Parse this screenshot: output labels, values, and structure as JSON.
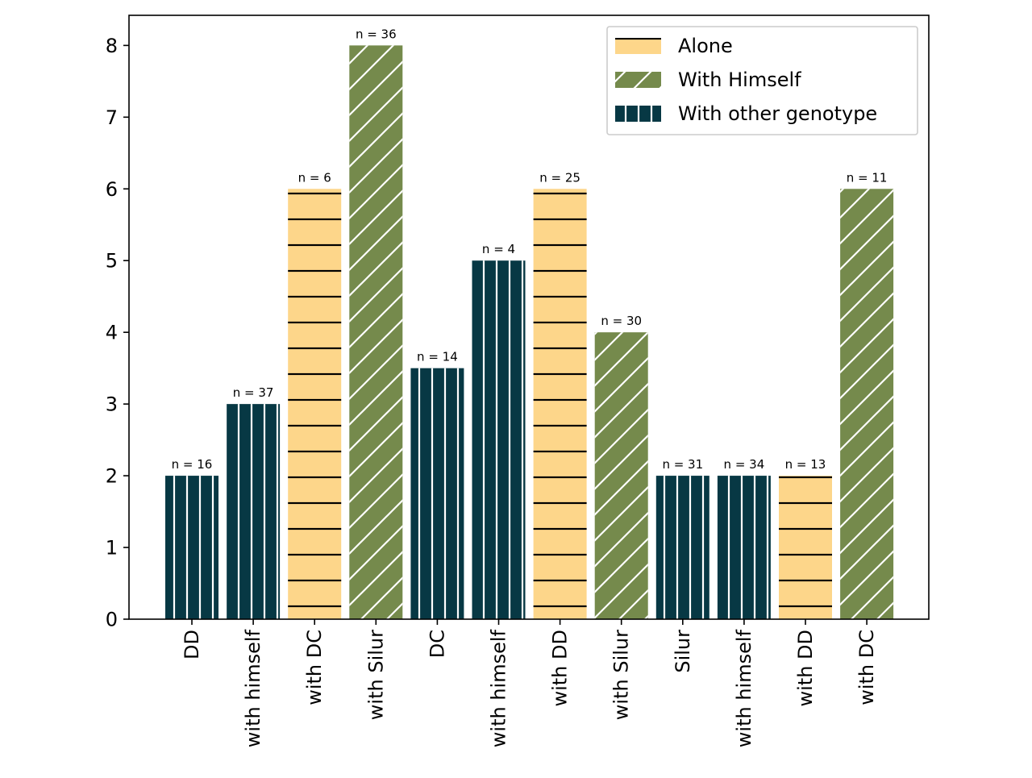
{
  "chart_data": {
    "type": "bar",
    "categories": [
      "DD",
      "with himself",
      "with DC",
      "with Silur",
      "DC",
      "with himself",
      "with DD",
      "with Silur",
      "Silur",
      "with himself",
      "with DD",
      "with DC"
    ],
    "values": [
      2,
      3,
      6,
      8,
      3.5,
      5,
      6,
      4,
      2,
      2,
      2,
      6
    ],
    "groups": [
      "With other genotype",
      "With other genotype",
      "Alone",
      "With Himself",
      "With other genotype",
      "With other genotype",
      "Alone",
      "With Himself",
      "With other genotype",
      "With other genotype",
      "Alone",
      "With Himself"
    ],
    "annotations": [
      "n = 16",
      "n = 37",
      "n = 6",
      "n = 36",
      "n = 14",
      "n = 4",
      "n = 25",
      "n = 30",
      "n = 31",
      "n = 34",
      "n = 13",
      "n = 11"
    ],
    "yticks": [
      "0",
      "1",
      "2",
      "3",
      "4",
      "5",
      "6",
      "7",
      "8"
    ],
    "ylim": [
      0,
      8.42
    ],
    "legend": {
      "placement": "upper-right",
      "entries": [
        {
          "label": "Alone",
          "color": "#fdd68a",
          "hatch": "horizontal"
        },
        {
          "label": "With Himself",
          "color": "#758a4c",
          "hatch": "diagonal"
        },
        {
          "label": "With other genotype",
          "color": "#073844",
          "hatch": "vertical"
        }
      ]
    },
    "title": "",
    "xlabel": "",
    "ylabel": "",
    "grid": false
  }
}
